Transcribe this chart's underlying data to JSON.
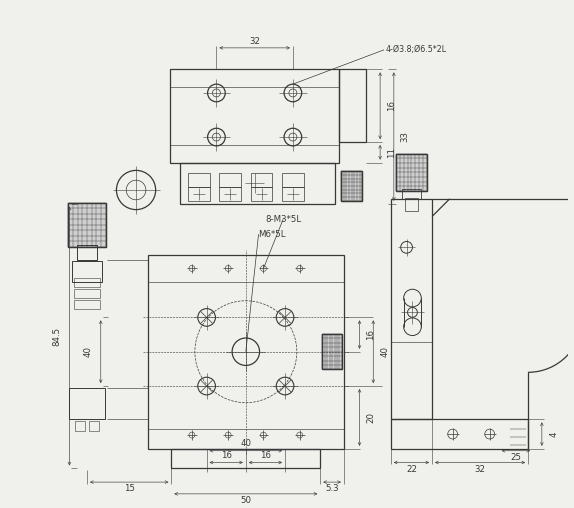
{
  "bg": "#f0f0ec",
  "lc": "#383838",
  "lw": 0.9,
  "tlw": 0.45,
  "dlw": 0.45,
  "fs": 6.2,
  "top_label": "4-Ø3.8;Ø6.5*2L",
  "d32": "32",
  "d16t": "16",
  "d11": "11",
  "d33": "33",
  "d845": "84.5",
  "d40a": "40",
  "d8M3": "8-M3*5L",
  "dM6": "M6*5L",
  "d16a": "16",
  "d16b": "16",
  "d40b": "40",
  "d20": "20",
  "d16c": "16",
  "d40c": "40",
  "d15": "15",
  "d50": "50",
  "d53": "5.3",
  "d22": "22",
  "d32s": "32",
  "d25": "25",
  "d4": "4"
}
